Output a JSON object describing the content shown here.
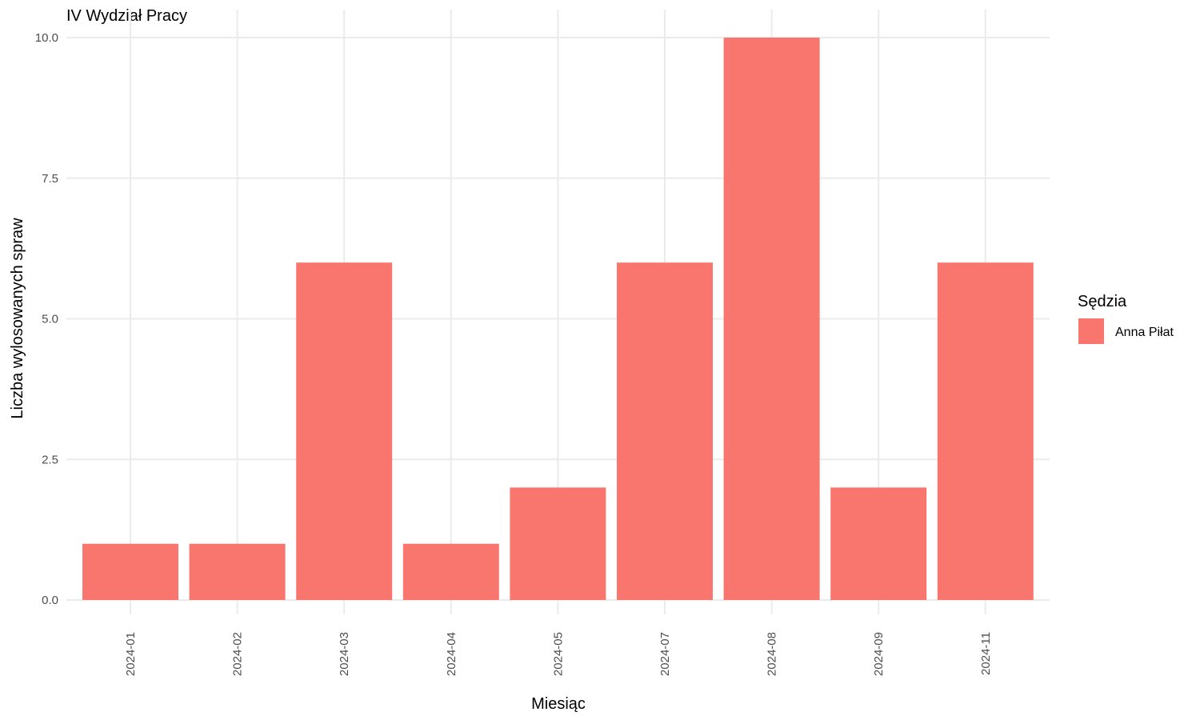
{
  "chart_data": {
    "type": "bar",
    "title": "IV Wydział Pracy",
    "xlabel": "Miesiąc",
    "ylabel": "Liczba wylosowanych spraw",
    "categories": [
      "2024-01",
      "2024-02",
      "2024-03",
      "2024-04",
      "2024-05",
      "2024-07",
      "2024-08",
      "2024-09",
      "2024-11"
    ],
    "series": [
      {
        "name": "Anna Piłat",
        "values": [
          1,
          1,
          6,
          1,
          2,
          6,
          10,
          2,
          6
        ],
        "color": "#F8766D"
      }
    ],
    "ylim": [
      0,
      10
    ],
    "yticks": [
      "0.0",
      "2.5",
      "5.0",
      "7.5",
      "10.0"
    ],
    "grid": true,
    "legend": {
      "title": "Sędzia",
      "position": "right",
      "entries": [
        "Anna Piłat"
      ]
    }
  }
}
